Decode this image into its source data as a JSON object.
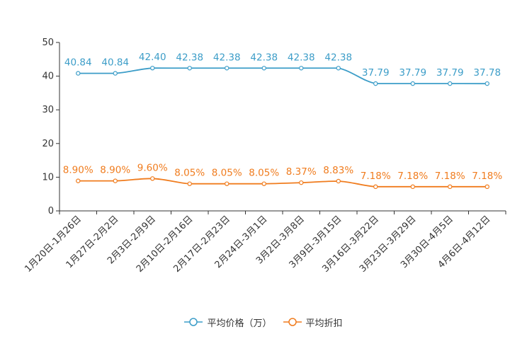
{
  "chart_data": {
    "type": "line",
    "title": "",
    "xlabel": "",
    "ylabel": "",
    "ylim": [
      0,
      50
    ],
    "yticks": [
      0,
      10,
      20,
      30,
      40,
      50
    ],
    "categories": [
      "1月20日-1月26日",
      "1月27日-2月2日",
      "2月3日-2月9日",
      "2月10日-2月16日",
      "2月17日-2月23日",
      "2月24日-3月1日",
      "3月2日-3月8日",
      "3月9日-3月15日",
      "3月16日-3月22日",
      "3月23日-3月29日",
      "3月30日-4月5日",
      "4月6日-4月12日"
    ],
    "series": [
      {
        "name": "平均价格（万）",
        "color": "#3c9dc8",
        "values": [
          40.84,
          40.84,
          42.4,
          42.38,
          42.38,
          42.38,
          42.38,
          42.38,
          37.79,
          37.79,
          37.79,
          37.78
        ],
        "labels": [
          "40.84",
          "40.84",
          "42.40",
          "42.38",
          "42.38",
          "42.38",
          "42.38",
          "42.38",
          "37.79",
          "37.79",
          "37.79",
          "37.78"
        ]
      },
      {
        "name": "平均折扣",
        "color": "#f07c1e",
        "values": [
          8.9,
          8.9,
          9.6,
          8.05,
          8.05,
          8.05,
          8.37,
          8.83,
          7.18,
          7.18,
          7.18,
          7.18
        ],
        "labels": [
          "8.90%",
          "8.90%",
          "9.60%",
          "8.05%",
          "8.05%",
          "8.05%",
          "8.37%",
          "8.83%",
          "7.18%",
          "7.18%",
          "7.18%",
          "7.18%"
        ]
      }
    ],
    "legend_position": "bottom-center",
    "grid": false
  }
}
